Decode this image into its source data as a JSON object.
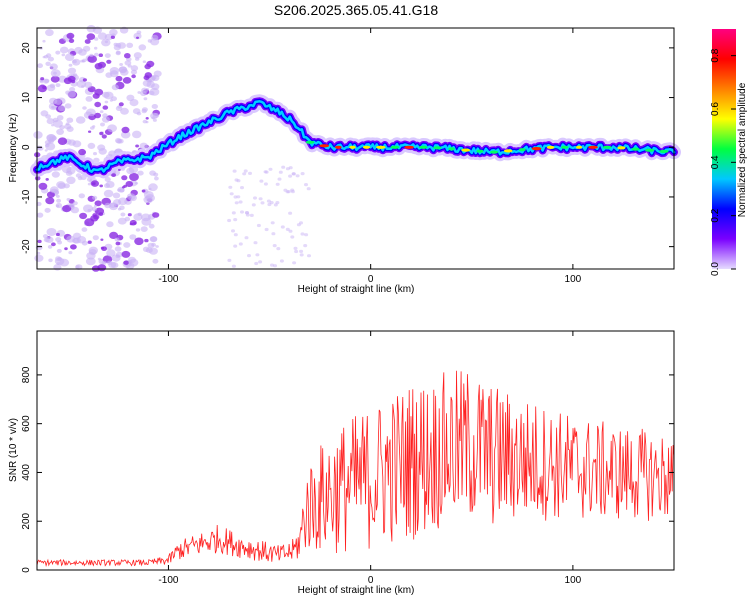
{
  "title": "S206.2025.365.05.41.G18",
  "chart_data": [
    {
      "type": "heatmap",
      "xlabel": "Height of straight line (km)",
      "ylabel": "Frequency (Hz)",
      "xlim": [
        -165,
        150
      ],
      "ylim": [
        -24.5,
        24
      ],
      "xticks": [
        -100,
        0,
        100
      ],
      "yticks": [
        20,
        10,
        0,
        -10,
        -20
      ],
      "colorbar": {
        "label": "Normalized spectral amplitude",
        "range": [
          0.0,
          0.9
        ],
        "ticks": [
          "0.0",
          "0.2",
          "0.4",
          "0.6",
          "0.8"
        ],
        "colormap": [
          "#e6dcff",
          "#7a00ff",
          "#0000ff",
          "#00c8ff",
          "#00ff40",
          "#ffff00",
          "#ff8000",
          "#ff0000",
          "#ff0080"
        ]
      },
      "ridge": {
        "x": [
          -165,
          -150,
          -135,
          -125,
          -110,
          -95,
          -85,
          -70,
          -55,
          -45,
          -38,
          -30,
          -20,
          0,
          30,
          60,
          90,
          120,
          150
        ],
        "freq": [
          -4,
          -2,
          -5,
          -3,
          -2,
          2,
          4,
          7,
          9,
          7,
          5,
          1,
          0,
          0,
          0,
          -1,
          0,
          0,
          -1
        ]
      }
    },
    {
      "type": "line",
      "xlabel": "Height of straight line (km)",
      "ylabel": "SNR (10 * v/v)",
      "xlim": [
        -165,
        150
      ],
      "ylim": [
        0,
        980
      ],
      "xticks": [
        -100,
        0,
        100
      ],
      "yticks": [
        0,
        200,
        400,
        600,
        800
      ],
      "color": "#ff2020",
      "envelope": {
        "x": [
          -165,
          -110,
          -100,
          -95,
          -75,
          -65,
          -45,
          -38,
          -35,
          -32,
          -20,
          0,
          20,
          40,
          50,
          60,
          80,
          100,
          120,
          150
        ],
        "mean": [
          30,
          30,
          40,
          80,
          130,
          100,
          60,
          80,
          120,
          250,
          320,
          380,
          450,
          500,
          510,
          470,
          450,
          420,
          400,
          380
        ],
        "amp": [
          12,
          12,
          20,
          40,
          60,
          50,
          40,
          50,
          80,
          180,
          260,
          300,
          330,
          320,
          330,
          300,
          250,
          220,
          200,
          180
        ]
      }
    }
  ]
}
